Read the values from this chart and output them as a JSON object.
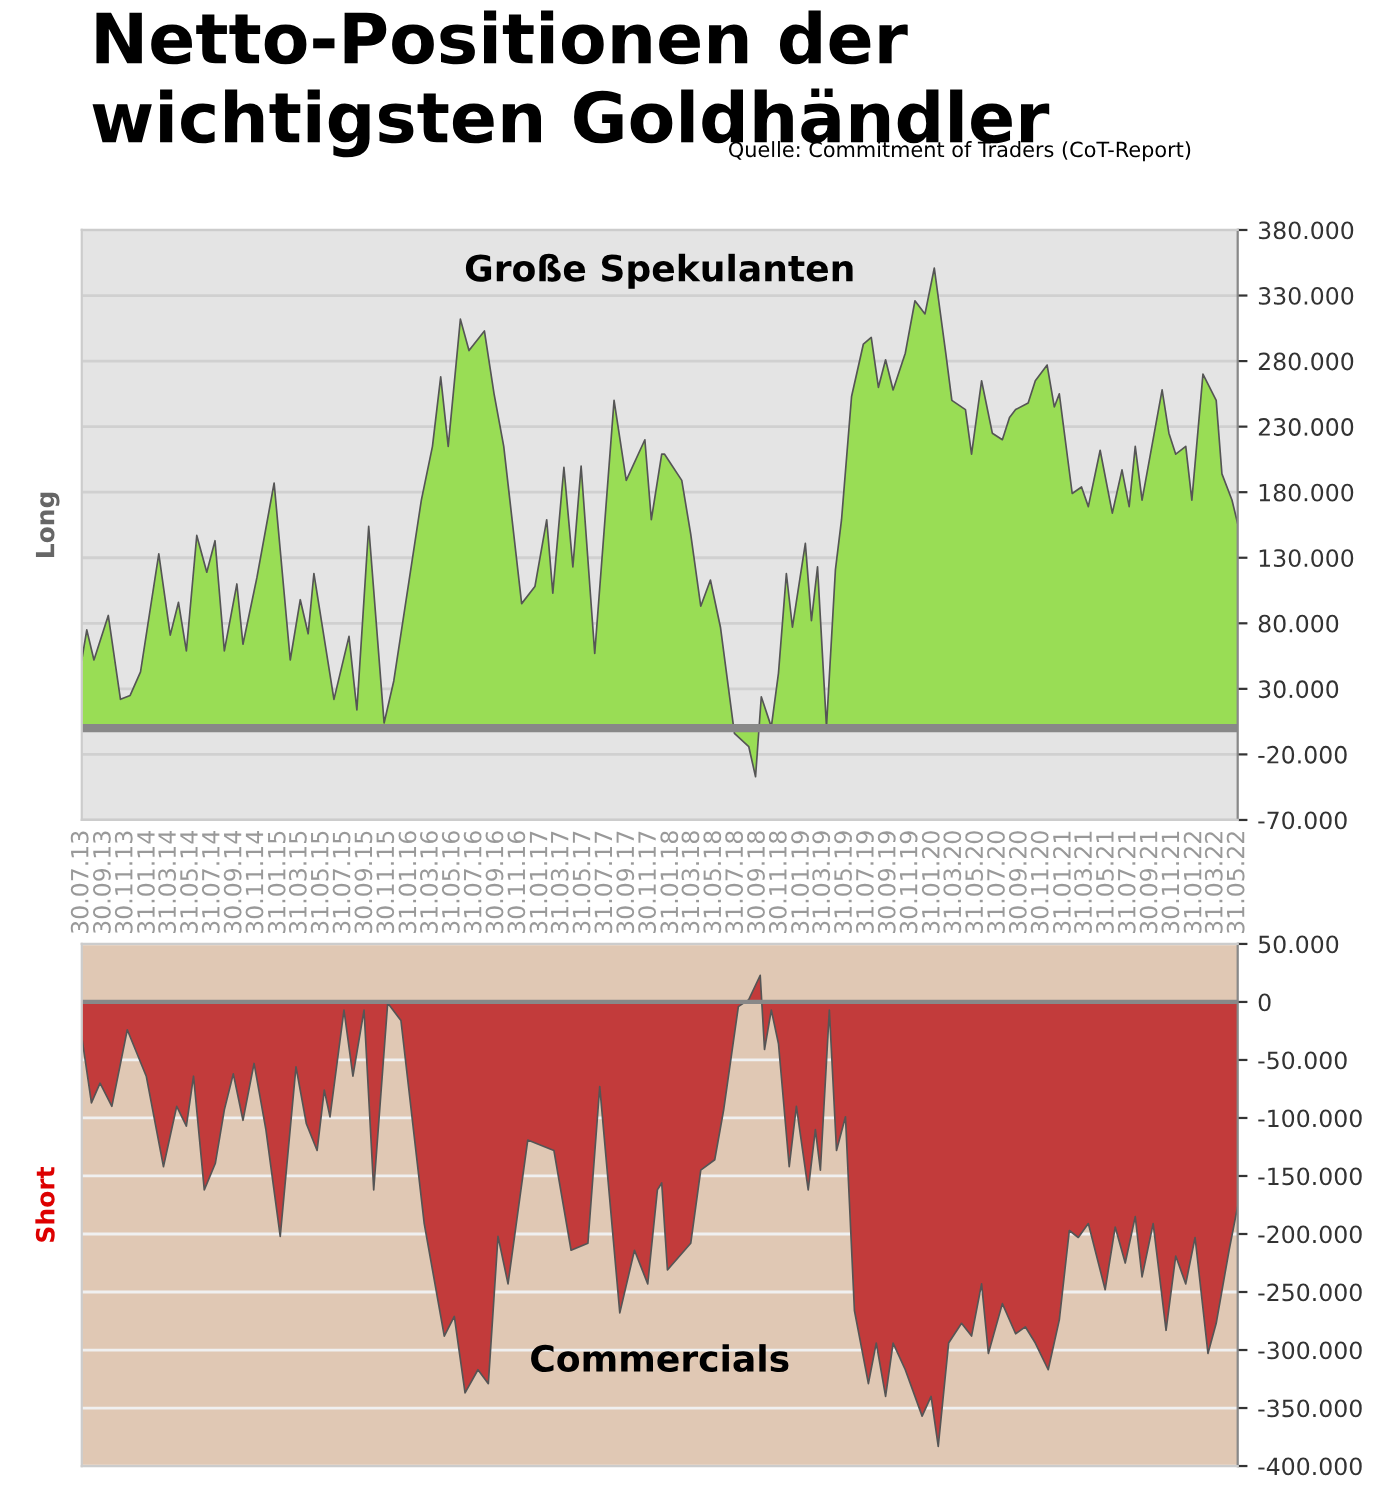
{
  "chart_data": [
    {
      "type": "area",
      "title": "Netto-Positionen der wichtigsten Goldhändler",
      "subtitle": "Quelle: Commitment of Traders (CoT-Report)",
      "ylabel": "Long",
      "grid": "y",
      "xlim": [
        "2013-07-30",
        "2022-05-31"
      ],
      "xticks": [
        {
          "value": "2013-07-30",
          "label": "30.07.13"
        },
        {
          "value": "2013-09-30",
          "label": "30.09.13"
        },
        {
          "value": "2013-11-30",
          "label": "30.11.13"
        },
        {
          "value": "2014-01-31",
          "label": "31.01.14"
        },
        {
          "value": "2014-03-31",
          "label": "31.03.14"
        },
        {
          "value": "2014-05-31",
          "label": "31.05.14"
        },
        {
          "value": "2014-07-31",
          "label": "31.07.14"
        },
        {
          "value": "2014-09-30",
          "label": "30.09.14"
        },
        {
          "value": "2014-11-30",
          "label": "30.11.14"
        },
        {
          "value": "2015-01-31",
          "label": "31.01.15"
        },
        {
          "value": "2015-03-31",
          "label": "31.03.15"
        },
        {
          "value": "2015-05-31",
          "label": "31.05.15"
        },
        {
          "value": "2015-07-31",
          "label": "31.07.15"
        },
        {
          "value": "2015-09-30",
          "label": "30.09.15"
        },
        {
          "value": "2015-11-30",
          "label": "30.11.15"
        },
        {
          "value": "2016-01-31",
          "label": "31.01.16"
        },
        {
          "value": "2016-03-31",
          "label": "31.03.16"
        },
        {
          "value": "2016-05-31",
          "label": "31.05.16"
        },
        {
          "value": "2016-07-31",
          "label": "31.07.16"
        },
        {
          "value": "2016-09-30",
          "label": "30.09.16"
        },
        {
          "value": "2016-11-30",
          "label": "30.11.16"
        },
        {
          "value": "2017-01-31",
          "label": "31.01.17"
        },
        {
          "value": "2017-03-31",
          "label": "31.03.17"
        },
        {
          "value": "2017-05-31",
          "label": "31.05.17"
        },
        {
          "value": "2017-07-31",
          "label": "31.07.17"
        },
        {
          "value": "2017-09-30",
          "label": "30.09.17"
        },
        {
          "value": "2017-11-30",
          "label": "30.11.17"
        },
        {
          "value": "2018-01-31",
          "label": "31.01.18"
        },
        {
          "value": "2018-03-31",
          "label": "31.03.18"
        },
        {
          "value": "2018-05-31",
          "label": "31.05.18"
        },
        {
          "value": "2018-07-31",
          "label": "31.07.18"
        },
        {
          "value": "2018-09-30",
          "label": "30.09.18"
        },
        {
          "value": "2018-11-30",
          "label": "30.11.18"
        },
        {
          "value": "2019-01-31",
          "label": "31.01.19"
        },
        {
          "value": "2019-03-31",
          "label": "31.03.19"
        },
        {
          "value": "2019-05-31",
          "label": "31.05.19"
        },
        {
          "value": "2019-07-31",
          "label": "31.07.19"
        },
        {
          "value": "2019-09-30",
          "label": "30.09.19"
        },
        {
          "value": "2019-11-30",
          "label": "30.11.19"
        },
        {
          "value": "2020-01-31",
          "label": "31.01.20"
        },
        {
          "value": "2020-03-31",
          "label": "31.03.20"
        },
        {
          "value": "2020-05-31",
          "label": "31.05.20"
        },
        {
          "value": "2020-07-31",
          "label": "31.07.20"
        },
        {
          "value": "2020-09-30",
          "label": "30.09.20"
        },
        {
          "value": "2020-11-30",
          "label": "30.11.20"
        },
        {
          "value": "2021-01-31",
          "label": "31.01.21"
        },
        {
          "value": "2021-03-31",
          "label": "31.03.21"
        },
        {
          "value": "2021-05-31",
          "label": "31.05.21"
        },
        {
          "value": "2021-07-31",
          "label": "31.07.21"
        },
        {
          "value": "2021-09-30",
          "label": "30.09.21"
        },
        {
          "value": "2021-11-30",
          "label": "30.11.21"
        },
        {
          "value": "2022-01-31",
          "label": "31.01.22"
        },
        {
          "value": "2022-03-31",
          "label": "31.03.22"
        },
        {
          "value": "2022-05-31",
          "label": "31.05.22"
        }
      ],
      "ylim": [
        -70000,
        380000
      ],
      "yticks": [
        {
          "value": -70000,
          "label": "-70.000"
        },
        {
          "value": -20000,
          "label": "-20.000"
        },
        {
          "value": 30000,
          "label": "30.000"
        },
        {
          "value": 80000,
          "label": "80.000"
        },
        {
          "value": 130000,
          "label": "130.000"
        },
        {
          "value": 180000,
          "label": "180.000"
        },
        {
          "value": 230000,
          "label": "230.000"
        },
        {
          "value": 280000,
          "label": "280.000"
        },
        {
          "value": 330000,
          "label": "330.000"
        },
        {
          "value": 380000,
          "label": "380.000"
        }
      ],
      "series": [
        {
          "name": "Große Spekulanten",
          "color": "#99dd55",
          "x": [
            "2013-07-30",
            "2013-08-13",
            "2013-09-02",
            "2013-10-12",
            "2013-11-15",
            "2013-12-12",
            "2014-01-10",
            "2014-03-02",
            "2014-04-03",
            "2014-04-26",
            "2014-05-18",
            "2014-06-16",
            "2014-07-14",
            "2014-08-06",
            "2014-09-01",
            "2014-10-06",
            "2014-10-23",
            "2014-12-01",
            "2015-01-18",
            "2015-03-04",
            "2015-04-01",
            "2015-04-23",
            "2015-05-09",
            "2015-07-04",
            "2015-08-15",
            "2015-09-06",
            "2015-10-09",
            "2015-11-21",
            "2015-12-18",
            "2016-03-04",
            "2016-04-04",
            "2016-04-27",
            "2016-05-18",
            "2016-06-21",
            "2016-07-15",
            "2016-08-27",
            "2016-09-23",
            "2016-10-20",
            "2016-12-09",
            "2017-01-15",
            "2017-02-17",
            "2017-03-06",
            "2017-04-06",
            "2017-05-01",
            "2017-05-24",
            "2017-07-01",
            "2017-08-24",
            "2017-09-27",
            "2017-11-18",
            "2017-12-06",
            "2018-01-04",
            "2018-01-12",
            "2018-03-01",
            "2018-03-26",
            "2018-04-23",
            "2018-05-20",
            "2018-06-17",
            "2018-07-26",
            "2018-09-04",
            "2018-09-23",
            "2018-10-09",
            "2018-11-06",
            "2018-11-26",
            "2018-12-18",
            "2019-01-04",
            "2019-02-09",
            "2019-02-26",
            "2019-03-15",
            "2019-04-09",
            "2019-05-04",
            "2019-05-21",
            "2019-06-18",
            "2019-07-21",
            "2019-08-12",
            "2019-09-01",
            "2019-09-21",
            "2019-10-12",
            "2019-11-15",
            "2019-12-12",
            "2020-01-09",
            "2020-02-04",
            "2020-03-07",
            "2020-03-24",
            "2020-05-01",
            "2020-05-18",
            "2020-06-15",
            "2020-07-15",
            "2020-08-12",
            "2020-09-01",
            "2020-09-18",
            "2020-10-23",
            "2020-11-12",
            "2020-12-15",
            "2021-01-04",
            "2021-01-18",
            "2021-02-23",
            "2021-03-21",
            "2021-04-09",
            "2021-05-12",
            "2021-06-15",
            "2021-07-12",
            "2021-08-01",
            "2021-08-18",
            "2021-09-06",
            "2021-11-01",
            "2021-11-20",
            "2021-12-09",
            "2022-01-06",
            "2022-01-23",
            "2022-02-23",
            "2022-04-01",
            "2022-04-17",
            "2022-05-15",
            "2022-05-31"
          ],
          "values": [
            52000,
            75000,
            52000,
            86000,
            22000,
            25000,
            43000,
            133000,
            71000,
            96000,
            59000,
            147000,
            119000,
            143000,
            59000,
            110000,
            64000,
            115000,
            187000,
            52000,
            98000,
            72000,
            118000,
            22000,
            70000,
            14000,
            154000,
            4000,
            36000,
            174000,
            215000,
            268000,
            215000,
            312000,
            288000,
            303000,
            255000,
            215000,
            95000,
            108000,
            159000,
            103000,
            199000,
            123000,
            200000,
            57000,
            250000,
            189000,
            220000,
            159000,
            209000,
            209000,
            189000,
            148000,
            93000,
            113000,
            77000,
            -4000,
            -14000,
            -37000,
            24000,
            1000,
            42000,
            118000,
            77000,
            141000,
            82000,
            123000,
            1000,
            121000,
            159000,
            253000,
            293000,
            298000,
            260000,
            281000,
            258000,
            286000,
            326000,
            316000,
            351000,
            286000,
            250000,
            243000,
            209000,
            265000,
            225000,
            220000,
            237000,
            243000,
            248000,
            265000,
            277000,
            245000,
            255000,
            179000,
            184000,
            169000,
            212000,
            164000,
            197000,
            169000,
            215000,
            174000,
            258000,
            225000,
            209000,
            215000,
            174000,
            270000,
            250000,
            194000,
            174000,
            156000
          ]
        }
      ]
    },
    {
      "type": "area",
      "ylabel": "Short",
      "grid": "y",
      "tick_labels": "y",
      "xlim": [
        "2013-07-30",
        "2022-05-31"
      ],
      "ylim": [
        -400000,
        50000
      ],
      "yticks": [
        {
          "value": -400000,
          "label": "-400.000"
        },
        {
          "value": -350000,
          "label": "-350.000"
        },
        {
          "value": -300000,
          "label": "-300.000"
        },
        {
          "value": -250000,
          "label": "-250.000"
        },
        {
          "value": -200000,
          "label": "-200.000"
        },
        {
          "value": -150000,
          "label": "-150.000"
        },
        {
          "value": -100000,
          "label": "-100.000"
        },
        {
          "value": -50000,
          "label": "-50.000"
        },
        0,
        {
          "value": 50000,
          "label": "50.000"
        }
      ],
      "series": [
        {
          "name": "Commercials",
          "color": "#c23b3b",
          "x": [
            "2013-07-30",
            "2013-08-26",
            "2013-09-19",
            "2013-10-22",
            "2013-12-04",
            "2014-01-26",
            "2014-03-15",
            "2014-04-21",
            "2014-05-18",
            "2014-06-07",
            "2014-07-07",
            "2014-08-07",
            "2014-09-01",
            "2014-09-26",
            "2014-10-23",
            "2014-11-23",
            "2014-12-26",
            "2015-02-04",
            "2015-03-20",
            "2015-04-18",
            "2015-05-18",
            "2015-06-07",
            "2015-06-23",
            "2015-08-01",
            "2015-08-26",
            "2015-09-26",
            "2015-10-23",
            "2015-12-01",
            "2016-01-07",
            "2016-03-12",
            "2016-05-07",
            "2016-06-04",
            "2016-07-04",
            "2016-08-09",
            "2016-09-07",
            "2016-10-04",
            "2016-11-01",
            "2016-12-26",
            "2017-03-09",
            "2017-04-26",
            "2017-06-12",
            "2017-07-15",
            "2017-09-09",
            "2017-10-20",
            "2017-11-26",
            "2017-12-23",
            "2018-01-04",
            "2018-01-20",
            "2018-03-26",
            "2018-04-23",
            "2018-06-01",
            "2018-06-26",
            "2018-08-06",
            "2018-09-04",
            "2018-10-06",
            "2018-10-18",
            "2018-11-06",
            "2018-11-26",
            "2018-12-26",
            "2019-01-15",
            "2019-02-17",
            "2019-03-09",
            "2019-03-23",
            "2019-04-17",
            "2019-05-07",
            "2019-06-01",
            "2019-06-26",
            "2019-08-04",
            "2019-08-26",
            "2019-09-21",
            "2019-10-12",
            "2019-11-15",
            "2020-01-01",
            "2020-01-26",
            "2020-02-15",
            "2020-03-15",
            "2020-04-20",
            "2020-05-18",
            "2020-06-15",
            "2020-07-04",
            "2020-08-12",
            "2020-09-18",
            "2020-10-15",
            "2020-11-12",
            "2020-12-18",
            "2021-01-18",
            "2021-02-15",
            "2021-03-12",
            "2021-04-09",
            "2021-05-26",
            "2021-06-23",
            "2021-07-21",
            "2021-08-18",
            "2021-09-06",
            "2021-10-07",
            "2021-11-12",
            "2021-12-09",
            "2022-01-06",
            "2022-02-01",
            "2022-03-09",
            "2022-04-01",
            "2022-05-07",
            "2022-05-31"
          ],
          "values": [
            -30000,
            -87000,
            -70000,
            -90000,
            -24000,
            -64000,
            -142000,
            -90000,
            -107000,
            -64000,
            -162000,
            -139000,
            -93000,
            -62000,
            -102000,
            -53000,
            -110000,
            -202000,
            -56000,
            -105000,
            -128000,
            -76000,
            -99000,
            -7000,
            -64000,
            -7000,
            -162000,
            -1000,
            -16000,
            -191000,
            -288000,
            -271000,
            -337000,
            -317000,
            -329000,
            -202000,
            -243000,
            -119000,
            -128000,
            -214000,
            -208000,
            -73000,
            -268000,
            -214000,
            -243000,
            -162000,
            -156000,
            -231000,
            -208000,
            -145000,
            -136000,
            -93000,
            -4000,
            2000,
            23000,
            -41000,
            -7000,
            -36000,
            -142000,
            -90000,
            -162000,
            -110000,
            -145000,
            -7000,
            -128000,
            -99000,
            -266000,
            -329000,
            -294000,
            -340000,
            -294000,
            -317000,
            -357000,
            -340000,
            -383000,
            -294000,
            -277000,
            -288000,
            -243000,
            -303000,
            -260000,
            -286000,
            -280000,
            -294000,
            -317000,
            -274000,
            -197000,
            -203000,
            -191000,
            -248000,
            -194000,
            -225000,
            -185000,
            -237000,
            -191000,
            -283000,
            -219000,
            -243000,
            -203000,
            -303000,
            -277000,
            -214000,
            -176000
          ]
        }
      ]
    }
  ]
}
